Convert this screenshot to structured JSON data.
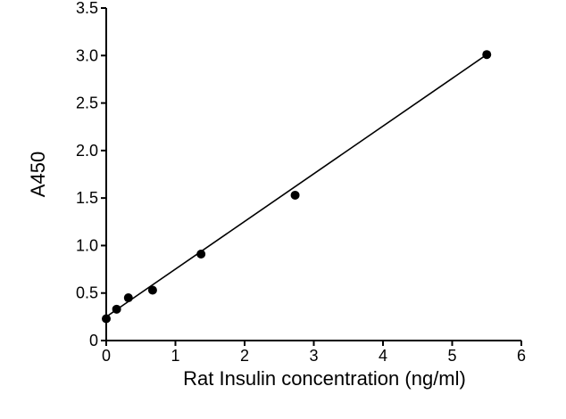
{
  "chart_data": {
    "type": "scatter",
    "title": "",
    "xlabel": "Rat Insulin concentration (ng/ml)",
    "ylabel": "A450",
    "xlim": [
      0,
      6
    ],
    "ylim": [
      0,
      3.5
    ],
    "x_ticks": [
      "0",
      "1",
      "2",
      "3",
      "4",
      "5",
      "6"
    ],
    "y_ticks": [
      "0",
      "0.5",
      "1.0",
      "1.5",
      "2.0",
      "2.5",
      "3.0",
      "3.5"
    ],
    "grid": false,
    "legend": "none",
    "series": [
      {
        "x": [
          0,
          0.15,
          0.32,
          0.67,
          1.37,
          2.73,
          5.5
        ],
        "y": [
          0.23,
          0.33,
          0.45,
          0.53,
          0.91,
          1.53,
          3.01
        ],
        "marker_color": "#000000"
      }
    ],
    "fit_line": {
      "x": [
        0,
        5.5
      ],
      "y": [
        0.25,
        3.01
      ],
      "color": "#000000"
    }
  }
}
